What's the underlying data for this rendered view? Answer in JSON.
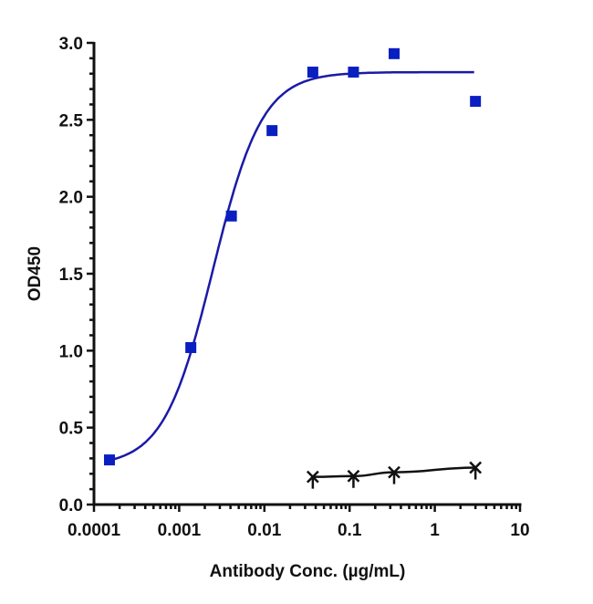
{
  "chart_data": {
    "type": "scatter",
    "title": "",
    "xlabel": "Antibody Conc. (µg/mL)",
    "ylabel": "OD450",
    "xscale": "log",
    "xlim": [
      0.0001,
      10
    ],
    "ylim": [
      0,
      3.0
    ],
    "xticks": [
      "0.0001",
      "0.001",
      "0.01",
      "0.1",
      "1",
      "10"
    ],
    "yticks": [
      "0.0",
      "0.5",
      "1.0",
      "1.5",
      "2.0",
      "2.5",
      "3.0"
    ],
    "grid": false,
    "legend": "none",
    "series": [
      {
        "marker": "square",
        "color": "#0a1fc0",
        "line_color": "#1a1aa8",
        "fit": "four-parameter logistic",
        "x": [
          0.000152,
          0.00137,
          0.0041,
          0.0123,
          0.037,
          0.111,
          0.333,
          3
        ],
        "y": [
          0.29,
          1.02,
          1.875,
          2.43,
          2.81,
          2.81,
          2.93,
          2.62
        ]
      },
      {
        "marker": "x",
        "color": "#111111",
        "line_color": "#111111",
        "x": [
          0.037,
          0.111,
          0.333,
          3
        ],
        "y": [
          0.18,
          0.185,
          0.21,
          0.24
        ]
      }
    ]
  }
}
